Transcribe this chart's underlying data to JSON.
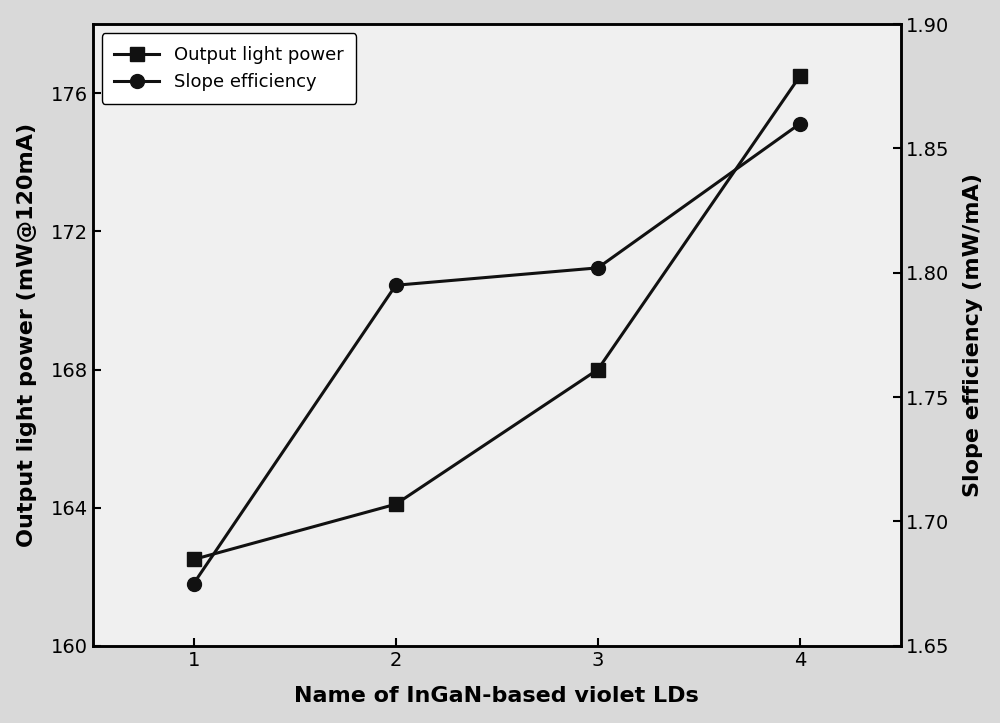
{
  "x": [
    1,
    2,
    3,
    4
  ],
  "output_power": [
    162.5,
    164.1,
    168.0,
    176.5
  ],
  "slope_efficiency": [
    1.675,
    1.795,
    1.802,
    1.86
  ],
  "left_ylim": [
    160,
    178
  ],
  "right_ylim": [
    1.65,
    1.9
  ],
  "left_yticks": [
    160,
    164,
    168,
    172,
    176
  ],
  "right_yticks": [
    1.65,
    1.7,
    1.75,
    1.8,
    1.85,
    1.9
  ],
  "xticks": [
    1,
    2,
    3,
    4
  ],
  "xlabel": "Name of InGaN-based violet LDs",
  "ylabel_left": "Output light power (mW@120mA)",
  "ylabel_right": "Slope efficiency (mW/mA)",
  "legend_labels": [
    "Output light power",
    "Slope efficiency"
  ],
  "line_color": "#111111",
  "fig_bg_color": "#d9d9d9",
  "plot_bg_color": "#f0f0f0",
  "marker_square": "s",
  "marker_circle": "o",
  "marker_size": 10,
  "linewidth": 2.2,
  "font_size_label": 16,
  "font_size_tick": 14,
  "font_size_legend": 13
}
